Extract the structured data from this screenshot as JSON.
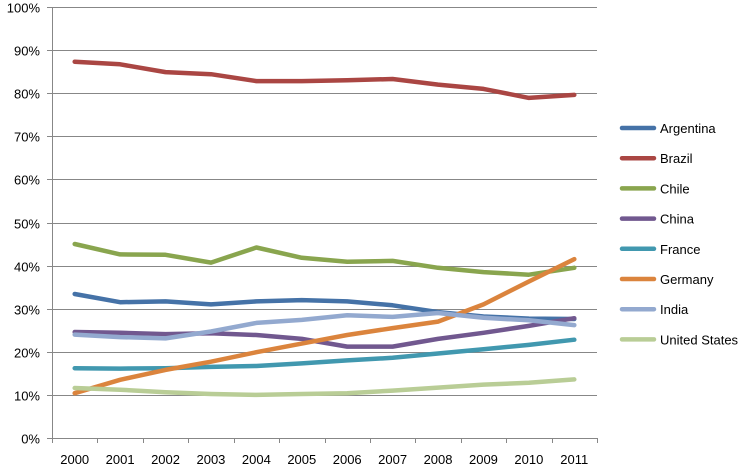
{
  "chart_data": {
    "type": "line",
    "title": "",
    "xlabel": "",
    "ylabel": "",
    "x": [
      "2000",
      "2001",
      "2002",
      "2003",
      "2004",
      "2005",
      "2006",
      "2007",
      "2008",
      "2009",
      "2010",
      "2011"
    ],
    "ylim": [
      0,
      100
    ],
    "yticks": [
      0,
      10,
      20,
      30,
      40,
      50,
      60,
      70,
      80,
      90,
      100
    ],
    "ytick_labels": [
      "0%",
      "10%",
      "20%",
      "30%",
      "40%",
      "50%",
      "60%",
      "70%",
      "80%",
      "90%",
      "100%"
    ],
    "grid": "horizontal",
    "legend_position": "right",
    "series": [
      {
        "name": "Argentina",
        "color": "#4572A7",
        "values": [
          33.4,
          31.5,
          31.7,
          31.0,
          31.7,
          32.0,
          31.7,
          30.8,
          29.2,
          28.2,
          27.7,
          27.6
        ]
      },
      {
        "name": "Brazil",
        "color": "#AA4643",
        "values": [
          87.3,
          86.7,
          84.9,
          84.4,
          82.8,
          82.8,
          83.0,
          83.3,
          82.0,
          81.0,
          78.9,
          79.6
        ]
      },
      {
        "name": "Chile",
        "color": "#89A54E",
        "values": [
          45.0,
          42.6,
          42.5,
          40.7,
          44.2,
          41.8,
          40.9,
          41.1,
          39.5,
          38.5,
          37.9,
          39.5
        ]
      },
      {
        "name": "China",
        "color": "#71588F",
        "values": [
          24.6,
          24.4,
          24.1,
          24.3,
          23.9,
          23.0,
          21.2,
          21.2,
          23.0,
          24.4,
          26.0,
          27.8
        ]
      },
      {
        "name": "France",
        "color": "#4198AF",
        "values": [
          16.2,
          16.1,
          16.2,
          16.5,
          16.7,
          17.3,
          18.0,
          18.6,
          19.6,
          20.6,
          21.6,
          22.8
        ]
      },
      {
        "name": "Germany",
        "color": "#DB843D",
        "values": [
          10.4,
          13.5,
          15.8,
          17.7,
          19.9,
          21.9,
          23.9,
          25.5,
          27.0,
          31.0,
          36.3,
          41.5
        ]
      },
      {
        "name": "India",
        "color": "#93A9CF",
        "values": [
          24.0,
          23.4,
          23.1,
          24.7,
          26.7,
          27.4,
          28.5,
          28.1,
          29.0,
          27.9,
          27.3,
          26.2
        ]
      },
      {
        "name": "United States",
        "color": "#B9CD96",
        "values": [
          11.6,
          11.2,
          10.6,
          10.2,
          10.0,
          10.2,
          10.4,
          11.0,
          11.7,
          12.4,
          12.8,
          13.6
        ]
      }
    ]
  }
}
